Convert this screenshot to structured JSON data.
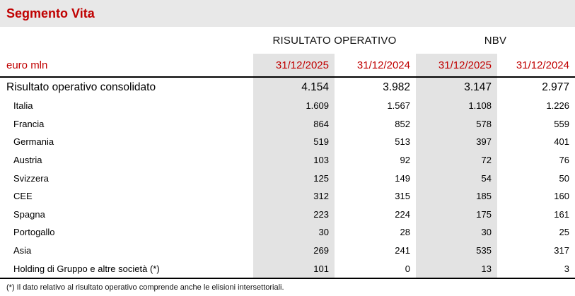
{
  "title": "Segmento Vita",
  "unit_label": "euro mln",
  "colors": {
    "accent_red": "#c00000",
    "band_gray": "#e3e3e3",
    "titlebar_gray": "#e8e8e8"
  },
  "table": {
    "group_headers": {
      "col1": "RISULTATO OPERATIVO",
      "col2": "NBV"
    },
    "date_headers": [
      "31/12/2025",
      "31/12/2024",
      "31/12/2025",
      "31/12/2024"
    ],
    "rows": [
      {
        "label": "Risultato operativo consolidato",
        "emphasis": true,
        "values": [
          "4.154",
          "3.982",
          "3.147",
          "2.977"
        ]
      },
      {
        "label": "Italia",
        "emphasis": false,
        "values": [
          "1.609",
          "1.567",
          "1.108",
          "1.226"
        ]
      },
      {
        "label": "Francia",
        "emphasis": false,
        "values": [
          "864",
          "852",
          "578",
          "559"
        ]
      },
      {
        "label": "Germania",
        "emphasis": false,
        "values": [
          "519",
          "513",
          "397",
          "401"
        ]
      },
      {
        "label": "Austria",
        "emphasis": false,
        "values": [
          "103",
          "92",
          "72",
          "76"
        ]
      },
      {
        "label": "Svizzera",
        "emphasis": false,
        "values": [
          "125",
          "149",
          "54",
          "50"
        ]
      },
      {
        "label": "CEE",
        "emphasis": false,
        "values": [
          "312",
          "315",
          "185",
          "160"
        ]
      },
      {
        "label": "Spagna",
        "emphasis": false,
        "values": [
          "223",
          "224",
          "175",
          "161"
        ]
      },
      {
        "label": "Portogallo",
        "emphasis": false,
        "values": [
          "30",
          "28",
          "30",
          "25"
        ]
      },
      {
        "label": "Asia",
        "emphasis": false,
        "values": [
          "269",
          "241",
          "535",
          "317"
        ]
      },
      {
        "label": "Holding di Gruppo e altre società (*)",
        "emphasis": false,
        "values": [
          "101",
          "0",
          "13",
          "3"
        ]
      }
    ],
    "footnote": "(*) Il dato relativo al risultato operativo comprende anche le elisioni intersettoriali."
  }
}
